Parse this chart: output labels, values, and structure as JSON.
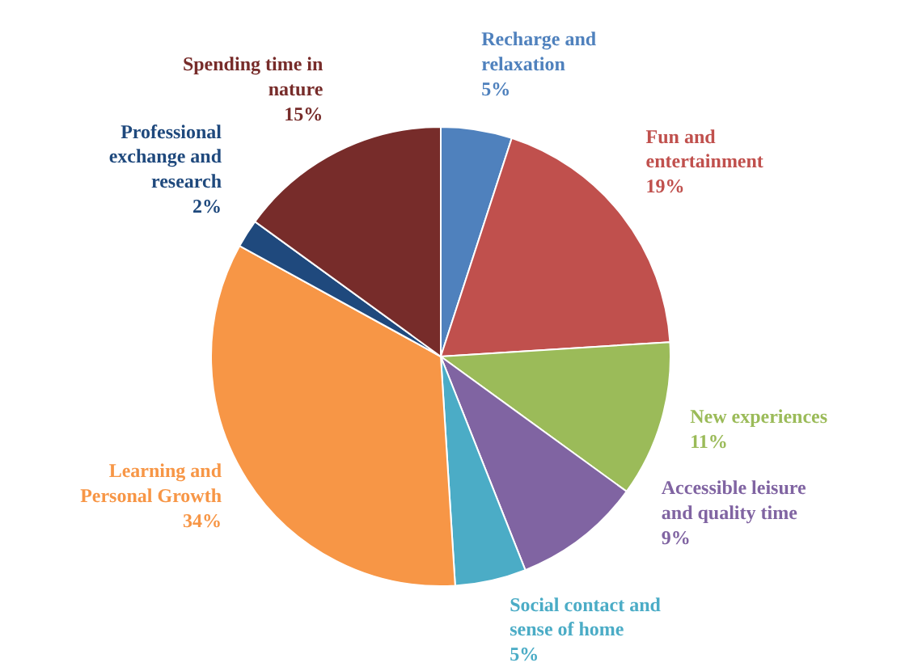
{
  "chart_data": {
    "type": "pie",
    "categories": [
      "Recharge and relaxation",
      "Fun and entertainment",
      "New experiences",
      "Accessible leisure and quality time",
      "Social contact and sense of home",
      "Learning and Personal Growth",
      "Professional exchange and research",
      "Spending time in nature"
    ],
    "values": [
      5,
      19,
      11,
      9,
      5,
      34,
      2,
      15
    ],
    "value_labels": [
      "5%",
      "19%",
      "11%",
      "9%",
      "5%",
      "34%",
      "2%",
      "15%"
    ],
    "colors": [
      "#4f81bd",
      "#c0504d",
      "#9bbb59",
      "#8064a2",
      "#4bacc6",
      "#f79646",
      "#1f497d",
      "#772c2a"
    ]
  }
}
